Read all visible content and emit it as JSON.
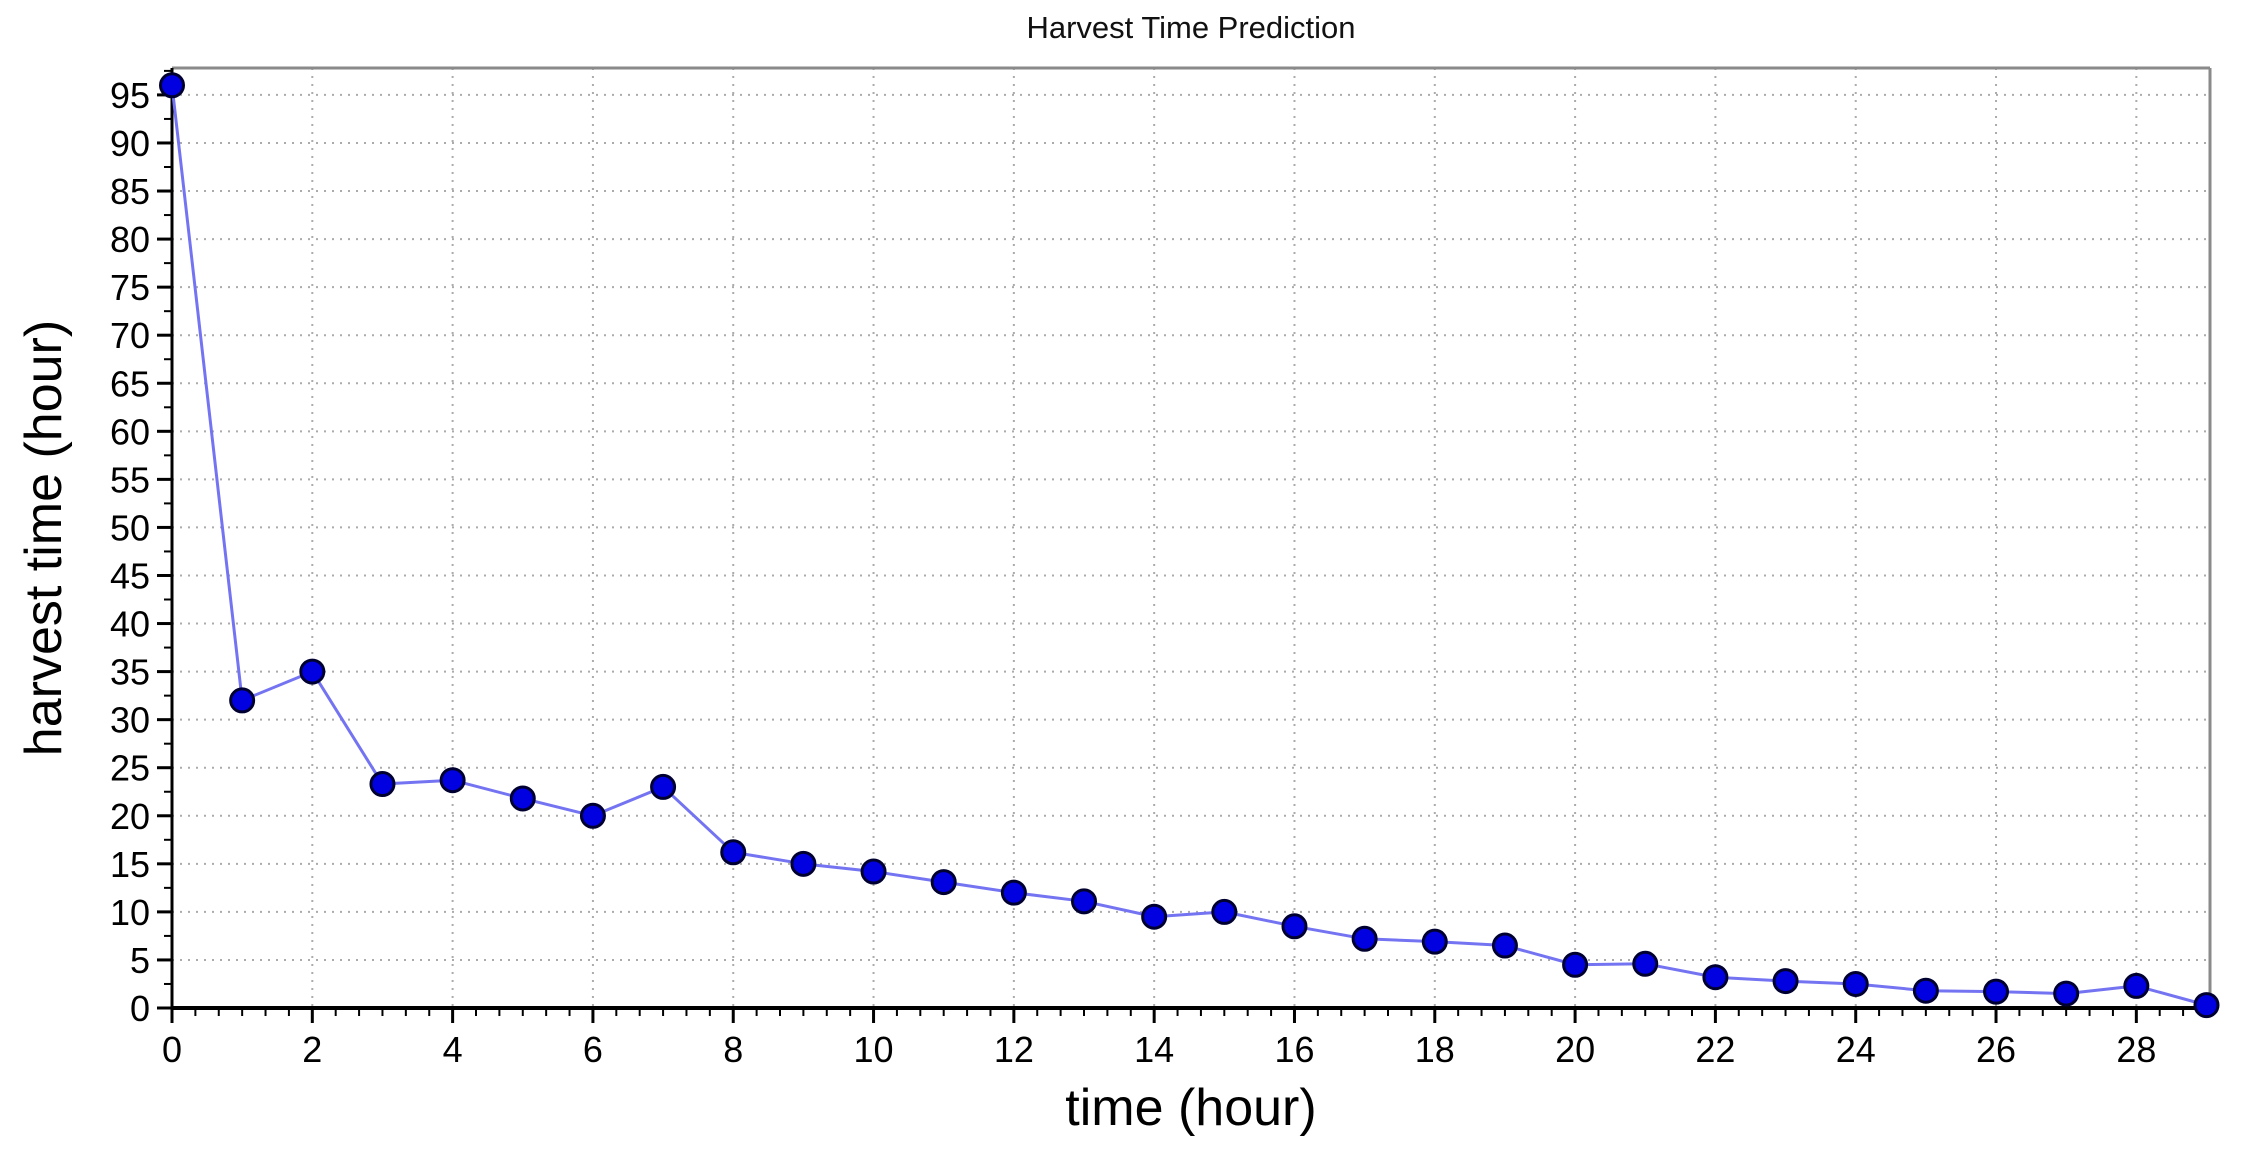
{
  "chart_data": {
    "type": "line",
    "title": "Harvest Time Prediction",
    "xlabel": "time (hour)",
    "ylabel": "harvest time (hour)",
    "series": [
      {
        "name": "harvest time prediction",
        "x": [
          0,
          1,
          2,
          3,
          4,
          5,
          6,
          7,
          8,
          9,
          10,
          11,
          12,
          13,
          14,
          15,
          16,
          17,
          18,
          19,
          20,
          21,
          22,
          23,
          24,
          25,
          26,
          27,
          28,
          29
        ],
        "y": [
          96,
          32,
          35,
          23.3,
          23.7,
          21.8,
          20,
          23,
          16.2,
          15,
          14.2,
          13.1,
          12,
          11.1,
          9.5,
          10,
          8.5,
          7.2,
          6.9,
          6.5,
          4.5,
          4.6,
          3.2,
          2.8,
          2.5,
          1.8,
          1.7,
          1.5,
          2.3,
          0.3
        ]
      }
    ],
    "xlim": [
      0,
      29.05
    ],
    "ylim": [
      0,
      97.8
    ],
    "xticks": [
      0,
      2,
      4,
      6,
      8,
      10,
      12,
      14,
      16,
      18,
      20,
      22,
      24,
      26,
      28
    ],
    "yticks": [
      0,
      5,
      10,
      15,
      20,
      25,
      30,
      35,
      40,
      45,
      50,
      55,
      60,
      65,
      70,
      75,
      80,
      85,
      90,
      95
    ],
    "x_minor_step": 0.33333,
    "y_minor_step": 2.5,
    "grid": true,
    "legend": null,
    "marker": "circle",
    "colors": {
      "line": "#7474f2",
      "marker_fill": "#0000e0",
      "marker_edge": "#000030",
      "grid": "#ababab",
      "axis": "#000000",
      "border": "#8a8a8a",
      "tick_text": "#000000"
    }
  }
}
